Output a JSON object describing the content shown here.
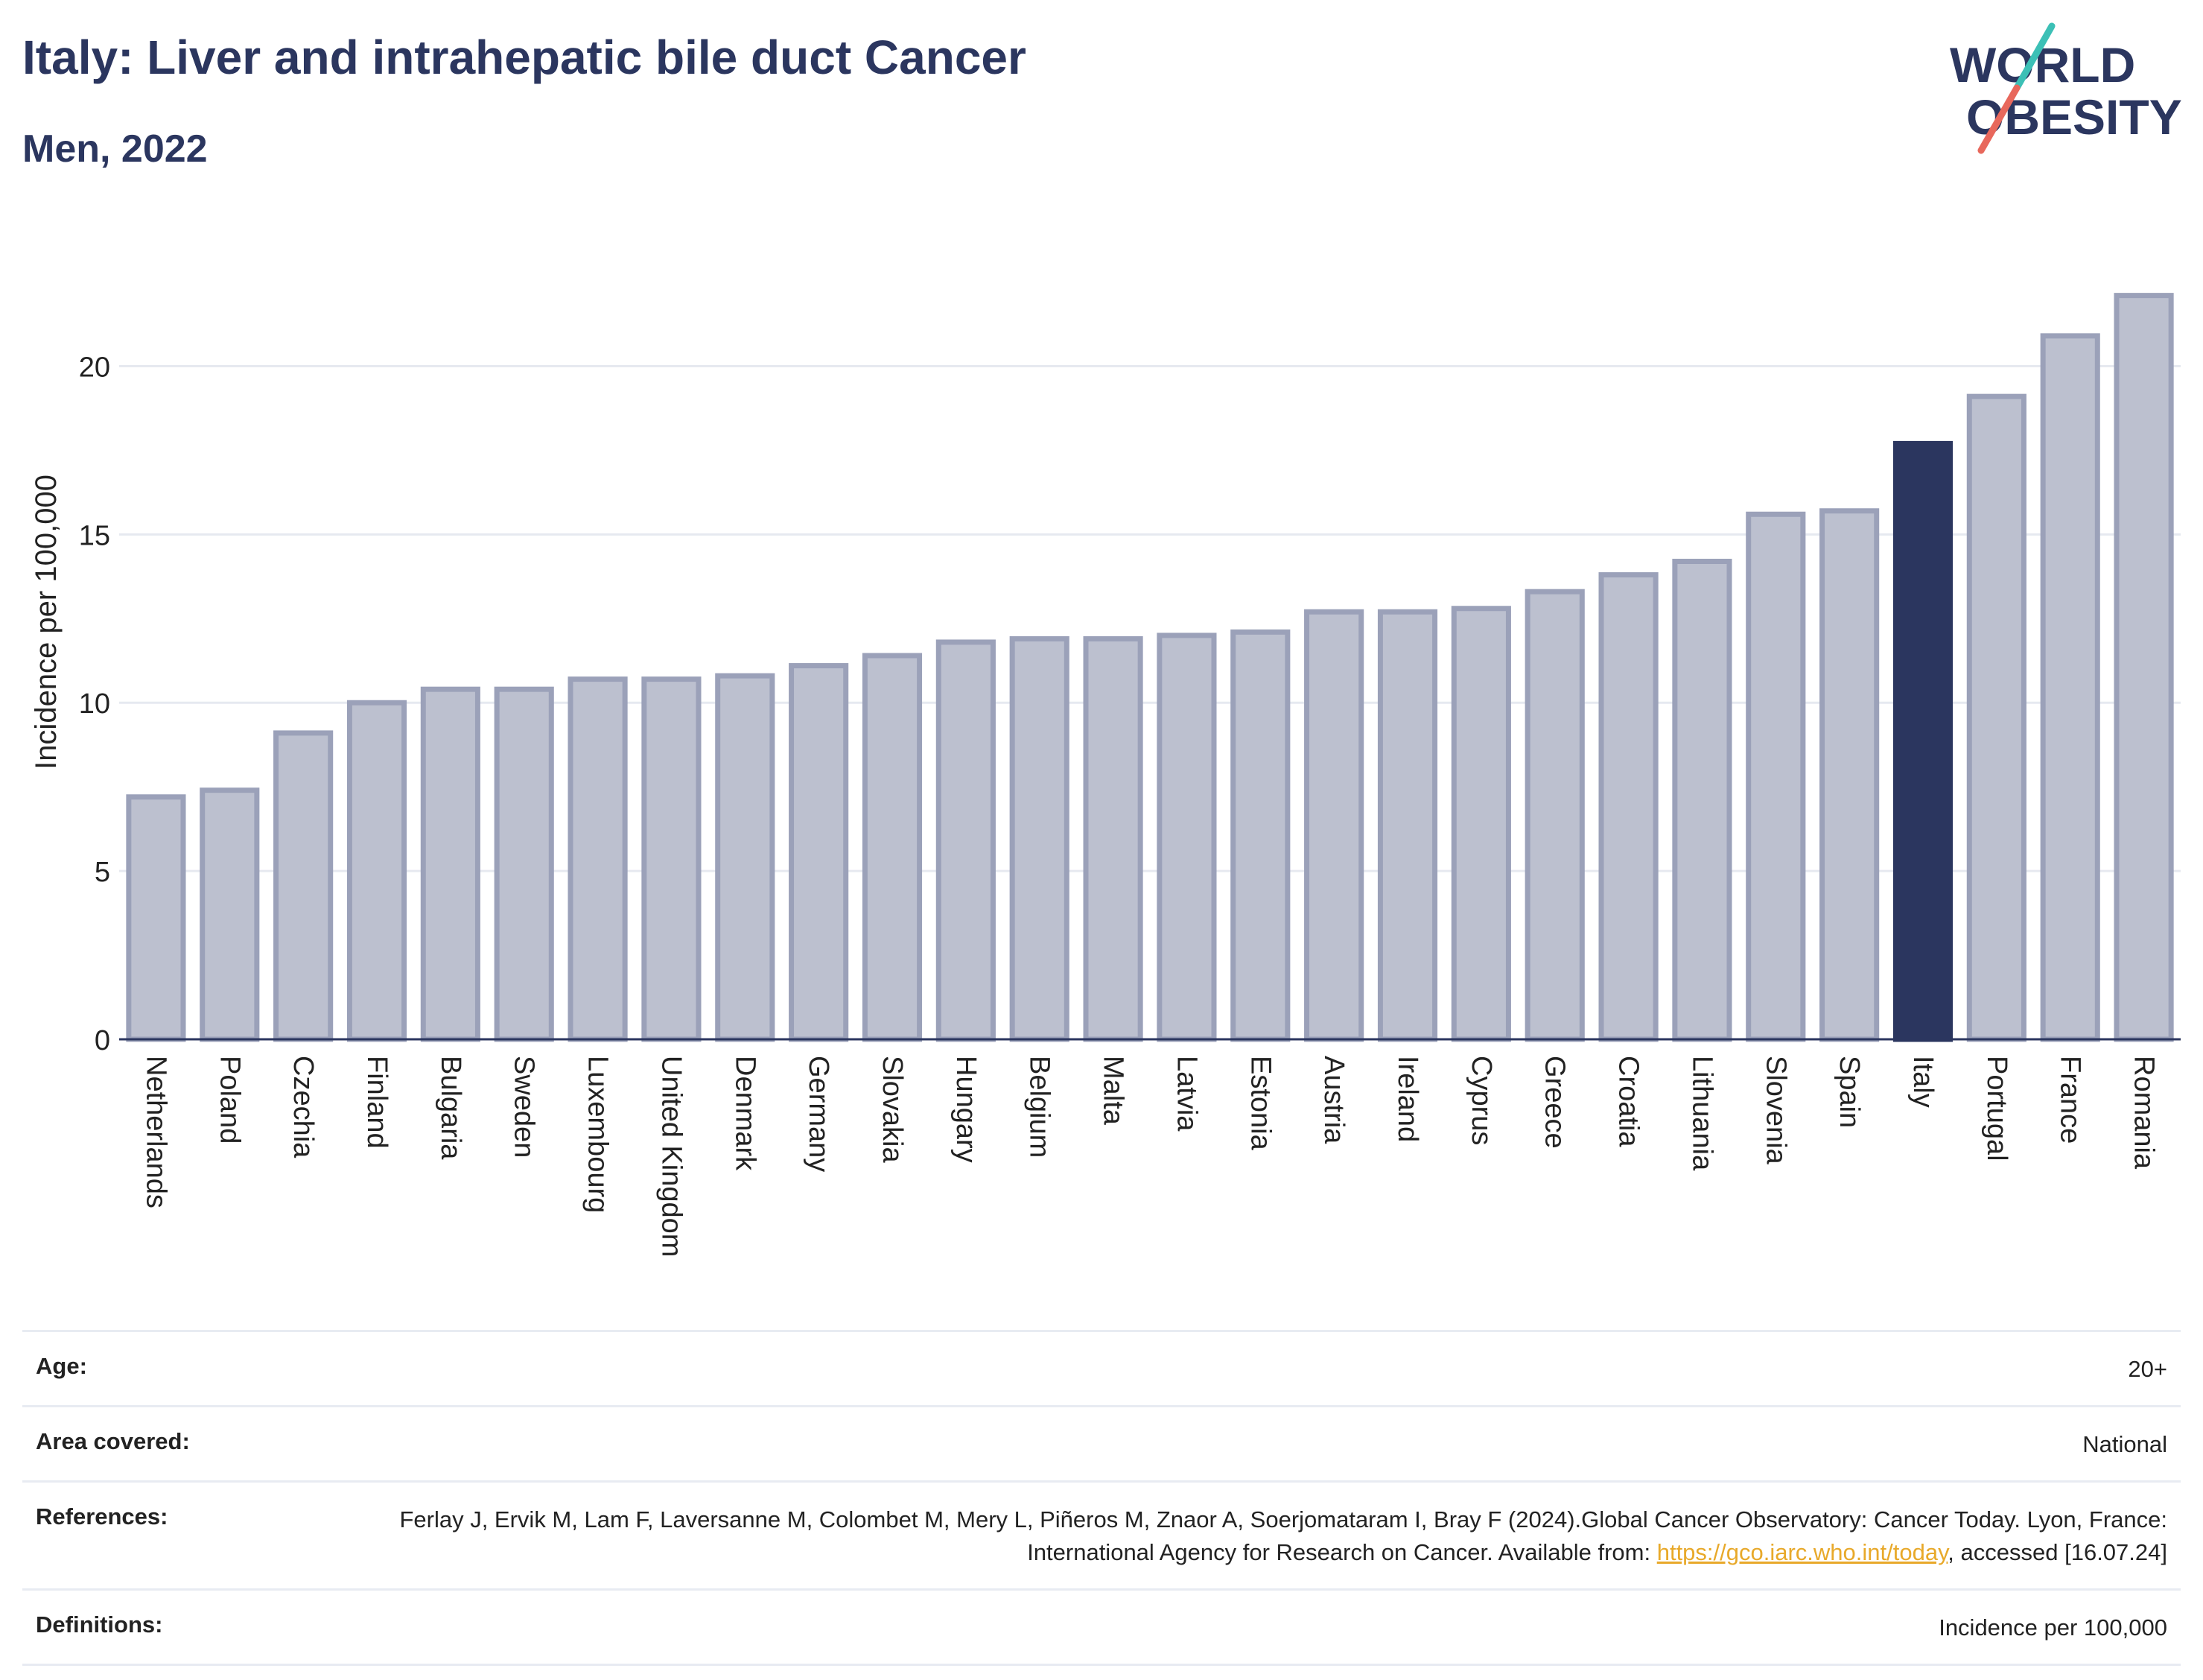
{
  "title": "Italy: Liver and intrahepatic bile duct Cancer",
  "subtitle": "Men, 2022",
  "logo": {
    "line1": "WORLD",
    "line2": "OBESITY",
    "icon": "slash-mark-icon"
  },
  "colors": {
    "highlight": "#2b365f",
    "bar_fill": "#bcc0cf",
    "bar_stroke": "#9ba1b9",
    "text": "#2b365f",
    "link": "#e8a92a"
  },
  "chart_data": {
    "type": "bar",
    "ylabel": "Incidence per 100,000",
    "xlabel": "",
    "ylim": [
      0,
      22.8
    ],
    "yticks": [
      0,
      5,
      10,
      15,
      20
    ],
    "grid": true,
    "highlight": "Italy",
    "categories": [
      "Netherlands",
      "Poland",
      "Czechia",
      "Finland",
      "Bulgaria",
      "Sweden",
      "Luxembourg",
      "United Kingdom",
      "Denmark",
      "Germany",
      "Slovakia",
      "Hungary",
      "Belgium",
      "Malta",
      "Latvia",
      "Estonia",
      "Austria",
      "Ireland",
      "Cyprus",
      "Greece",
      "Croatia",
      "Lithuania",
      "Slovenia",
      "Spain",
      "Italy",
      "Portugal",
      "France",
      "Romania"
    ],
    "values": [
      7.2,
      7.4,
      9.1,
      10.0,
      10.4,
      10.4,
      10.7,
      10.7,
      10.8,
      11.1,
      11.4,
      11.8,
      11.9,
      11.9,
      12.0,
      12.1,
      12.7,
      12.7,
      12.8,
      13.3,
      13.8,
      14.2,
      15.6,
      15.7,
      17.7,
      19.1,
      20.9,
      22.1
    ]
  },
  "info": {
    "age": {
      "label": "Age:",
      "value": "20+"
    },
    "area": {
      "label": "Area covered:",
      "value": "National"
    },
    "references": {
      "label": "References:",
      "text_before": "Ferlay J, Ervik M, Lam F, Laversanne M, Colombet M, Mery L, Piñeros M, Znaor A, Soerjomataram I, Bray F (2024).Global Cancer Observatory: Cancer Today. Lyon, France: International Agency for Research on Cancer. Available from: ",
      "link": "https://gco.iarc.who.int/today",
      "text_after": ", accessed [16.07.24]"
    },
    "definitions": {
      "label": "Definitions:",
      "value": "Incidence per 100,000"
    }
  }
}
